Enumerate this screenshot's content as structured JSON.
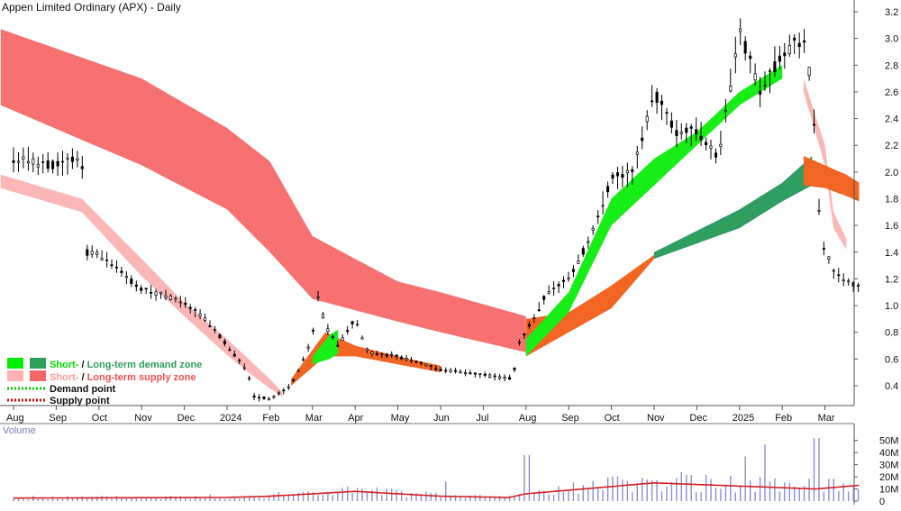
{
  "chart_data": {
    "type": "line",
    "title": "Appen Limited Ordinary (APX) - Daily",
    "price_axis": {
      "ylim": [
        0.25,
        3.3
      ],
      "ticks": [
        3.2,
        3.0,
        2.8,
        2.6,
        2.4,
        2.2,
        2.0,
        1.8,
        1.6,
        1.4,
        1.2,
        1.0,
        0.8,
        0.6,
        0.4
      ]
    },
    "months": [
      "Aug",
      "Sep",
      "Oct",
      "Nov",
      "Dec",
      "2024",
      "Feb",
      "Mar",
      "Apr",
      "May",
      "Jun",
      "Jul",
      "Aug",
      "Sep",
      "Oct",
      "Nov",
      "Dec",
      "2025",
      "Feb",
      "Mar"
    ],
    "price": [
      [
        0,
        2.1
      ],
      [
        1,
        2.05
      ],
      [
        1.6,
        2.12
      ],
      [
        1.7,
        1.4
      ],
      [
        2,
        1.38
      ],
      [
        2.5,
        1.25
      ],
      [
        3,
        1.12
      ],
      [
        3.5,
        1.08
      ],
      [
        4,
        1.02
      ],
      [
        4.5,
        0.9
      ],
      [
        5,
        0.7
      ],
      [
        5.5,
        0.5
      ],
      [
        5.6,
        0.32
      ],
      [
        6,
        0.3
      ],
      [
        6.5,
        0.4
      ],
      [
        7,
        0.75
      ],
      [
        7.1,
        1.1
      ],
      [
        7.3,
        0.85
      ],
      [
        7.6,
        0.7
      ],
      [
        8,
        0.9
      ],
      [
        8.3,
        0.65
      ],
      [
        9,
        0.62
      ],
      [
        10,
        0.52
      ],
      [
        11,
        0.48
      ],
      [
        11.7,
        0.45
      ],
      [
        11.8,
        0.7
      ],
      [
        12,
        0.8
      ],
      [
        12.5,
        1.1
      ],
      [
        13,
        1.2
      ],
      [
        13.5,
        1.5
      ],
      [
        14,
        1.95
      ],
      [
        14.5,
        2.0
      ],
      [
        15,
        2.6
      ],
      [
        15.5,
        2.3
      ],
      [
        16,
        2.3
      ],
      [
        16.5,
        2.1
      ],
      [
        17,
        3.05
      ],
      [
        17.5,
        2.6
      ],
      [
        18,
        2.9
      ],
      [
        18.5,
        3.0
      ],
      [
        18.7,
        2.6
      ],
      [
        18.9,
        1.5
      ],
      [
        19.2,
        1.25
      ],
      [
        19.8,
        1.13
      ]
    ],
    "volume": {
      "label": "Volume",
      "ticks": [
        "50M",
        "40M",
        "30M",
        "20M",
        "10M",
        "0"
      ],
      "ylim": [
        0,
        55
      ],
      "ma": [
        [
          0,
          2.5
        ],
        [
          5,
          3
        ],
        [
          6,
          4
        ],
        [
          8,
          8
        ],
        [
          10,
          4
        ],
        [
          11.6,
          3
        ],
        [
          12,
          6
        ],
        [
          15,
          15
        ],
        [
          18.8,
          10
        ],
        [
          19.8,
          13
        ]
      ]
    },
    "legend": [
      {
        "short": "Short-",
        "sep": " / ",
        "long": "Long-term demand zone",
        "short_color": "#00ee00",
        "long_color": "#2e9e5b"
      },
      {
        "short": "Short-",
        "sep": " / ",
        "long": "Long-term supply zone",
        "short_color": "#ffb3b3",
        "long_color": "#f56666"
      },
      {
        "label": "Demand point",
        "color": "#00cc00"
      },
      {
        "label": "Supply point",
        "color": "#dd0000"
      }
    ],
    "colors": {
      "candles": "#000000",
      "long_supply": "#f87171",
      "short_supply": "#fbb6b6",
      "short_demand": "#16ee16",
      "long_demand": "#2f9e60",
      "orange_zone": "#f26522",
      "volume_bars": "#8b8fd4",
      "volume_ma": "#d62020"
    }
  }
}
